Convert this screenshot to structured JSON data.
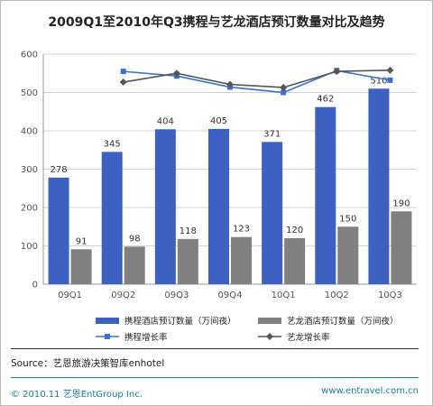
{
  "title": "2009Q1至2010年Q3携程与艺龙酒店预订数量对比及趋势",
  "colors": {
    "series1": "#3d61c2",
    "series2": "#808080",
    "line1": "#3d6fd0",
    "line2": "#555555",
    "footer": "#1a7c9c"
  },
  "chart_data": {
    "type": "bar",
    "categories": [
      "09Q1",
      "09Q2",
      "09Q3",
      "09Q4",
      "10Q1",
      "10Q2",
      "10Q3"
    ],
    "ylim": [
      0,
      600
    ],
    "yticks": [
      0,
      100,
      200,
      300,
      400,
      500,
      600
    ],
    "grid": true,
    "legend_position": "bottom",
    "series": [
      {
        "name": "携程酒店预订数量（万间夜）",
        "type": "bar",
        "values": [
          278,
          345,
          404,
          405,
          371,
          462,
          510
        ]
      },
      {
        "name": "艺龙酒店预订数量（万间夜）",
        "type": "bar",
        "values": [
          91,
          98,
          118,
          123,
          120,
          150,
          190
        ]
      },
      {
        "name": "携程增长率",
        "type": "line",
        "values": [
          null,
          555,
          543,
          514,
          500,
          557,
          532
        ]
      },
      {
        "name": "艺龙增长率",
        "type": "line",
        "values": [
          null,
          527,
          550,
          521,
          513,
          555,
          558
        ]
      }
    ]
  },
  "source": "Source：艺恩旅游决策智库enhotel",
  "footer": {
    "copyright": "© 2010.11  艺恩EntGroup Inc.",
    "url": "www.entravel.com.cn"
  }
}
